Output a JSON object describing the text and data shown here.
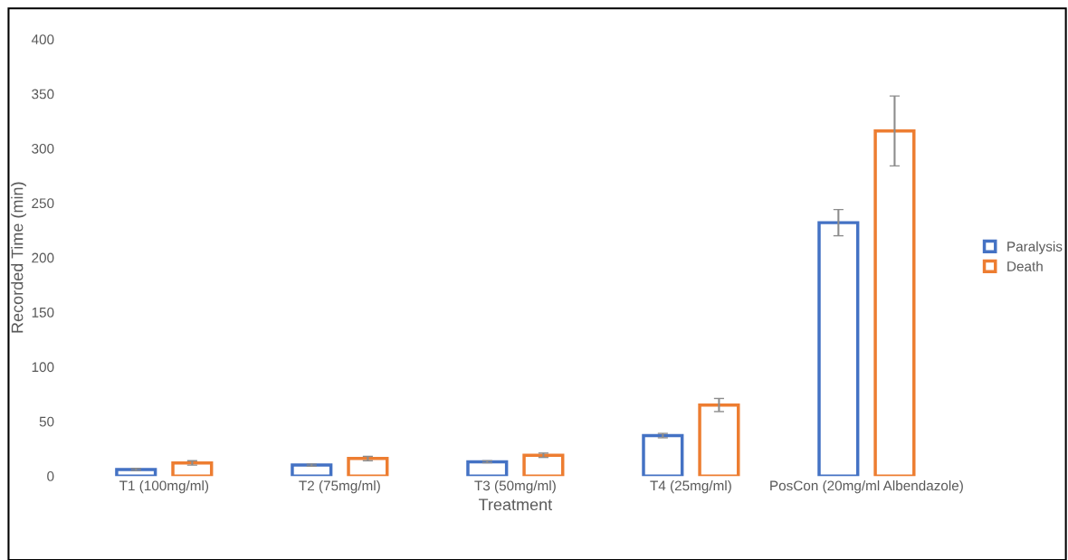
{
  "chart_data": {
    "type": "bar",
    "xlabel": "Treatment",
    "ylabel": "Recorded Time (min)",
    "categories": [
      "T1 (100mg/ml)",
      "T2 (75mg/ml)",
      "T3 (50mg/ml)",
      "T4 (25mg/ml)",
      "PosCon (20mg/ml Albendazole)"
    ],
    "series": [
      {
        "name": "Paralysis",
        "color": "#4472c4",
        "values": [
          6,
          10,
          13,
          37,
          232
        ],
        "errors": [
          1,
          1,
          1,
          2,
          12
        ]
      },
      {
        "name": "Death",
        "color": "#ed7d31",
        "values": [
          12,
          16,
          19,
          65,
          316
        ],
        "errors": [
          2,
          2,
          2,
          6,
          32
        ]
      }
    ],
    "ylim": [
      0,
      400
    ],
    "yticks": [
      0,
      50,
      100,
      150,
      200,
      250,
      300,
      350,
      400
    ],
    "grid": false,
    "legend": "right"
  }
}
